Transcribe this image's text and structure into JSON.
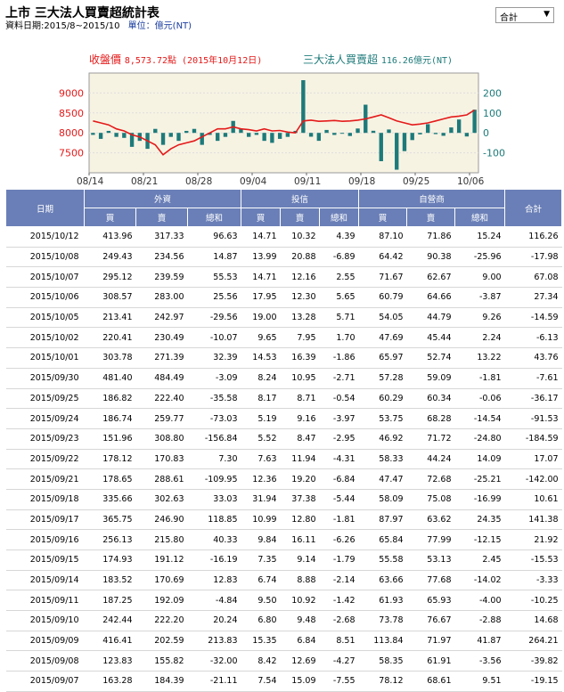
{
  "header": {
    "title": "上市 三大法人買賣超統計表",
    "date_range": "資料日期:2015/8~2015/10",
    "unit": "單位：億元(NT)"
  },
  "selector": {
    "value": "合計"
  },
  "legend": {
    "close_label": "收盤價",
    "close_value": "8,573.72點 (2015年10月12日)",
    "net_label": "三大法人買賣超",
    "net_value": "116.26億元(NT)"
  },
  "colors": {
    "price_line": "#e41a1a",
    "net_bar": "#1d7a7a",
    "header_bg": "#6a7fb7",
    "plot_bg": "#f7f3e3"
  },
  "chart_data": {
    "type": "bar",
    "left_axis": {
      "ticks": [
        "9000",
        "8500",
        "8000",
        "7500"
      ],
      "range": [
        7000,
        9500
      ]
    },
    "right_axis": {
      "ticks": [
        "200",
        "100",
        "0",
        "-100"
      ],
      "range": [
        -200,
        300
      ]
    },
    "x_ticks": [
      "08/14",
      "08/21",
      "08/28",
      "09/04",
      "09/11",
      "09/18",
      "09/25",
      "10/06"
    ],
    "net_values": [
      -10,
      -30,
      10,
      -20,
      -25,
      -70,
      -40,
      -80,
      20,
      -60,
      -20,
      -40,
      10,
      20,
      -60,
      -10,
      -40,
      -20,
      60,
      20,
      -20,
      -10,
      -40,
      -50,
      -30,
      -20,
      10,
      264.21,
      -19.15,
      -39.82,
      14.68,
      -10.25,
      -3.33,
      -15.53,
      21.92,
      141.38,
      10.61,
      -142.0,
      17.07,
      -184.59,
      -91.53,
      -36.17,
      -7.61,
      43.76,
      -6.13,
      -14.59,
      27.34,
      67.08,
      -17.98,
      116.26
    ],
    "close_values": [
      8300,
      8250,
      8200,
      8100,
      8050,
      7950,
      7900,
      7800,
      7700,
      7450,
      7600,
      7700,
      7750,
      7800,
      7900,
      8000,
      8100,
      8100,
      8150,
      8100,
      8080,
      8050,
      8100,
      8050,
      8060,
      8020,
      8000,
      8300,
      8320,
      8290,
      8300,
      8310,
      8290,
      8300,
      8320,
      8350,
      8400,
      8450,
      8380,
      8300,
      8250,
      8200,
      8220,
      8250,
      8300,
      8350,
      8400,
      8420,
      8450,
      8573.72
    ]
  },
  "table": {
    "groups": [
      "日期",
      "外資",
      "投信",
      "自營商",
      "合計"
    ],
    "subheaders": [
      "買",
      "賣",
      "總和",
      "買",
      "賣",
      "總和",
      "買",
      "賣",
      "總和"
    ],
    "rows": [
      [
        "2015/10/12",
        "413.96",
        "317.33",
        "96.63",
        "14.71",
        "10.32",
        "4.39",
        "87.10",
        "71.86",
        "15.24",
        "116.26"
      ],
      [
        "2015/10/08",
        "249.43",
        "234.56",
        "14.87",
        "13.99",
        "20.88",
        "-6.89",
        "64.42",
        "90.38",
        "-25.96",
        "-17.98"
      ],
      [
        "2015/10/07",
        "295.12",
        "239.59",
        "55.53",
        "14.71",
        "12.16",
        "2.55",
        "71.67",
        "62.67",
        "9.00",
        "67.08"
      ],
      [
        "2015/10/06",
        "308.57",
        "283.00",
        "25.56",
        "17.95",
        "12.30",
        "5.65",
        "60.79",
        "64.66",
        "-3.87",
        "27.34"
      ],
      [
        "2015/10/05",
        "213.41",
        "242.97",
        "-29.56",
        "19.00",
        "13.28",
        "5.71",
        "54.05",
        "44.79",
        "9.26",
        "-14.59"
      ],
      [
        "2015/10/02",
        "220.41",
        "230.49",
        "-10.07",
        "9.65",
        "7.95",
        "1.70",
        "47.69",
        "45.44",
        "2.24",
        "-6.13"
      ],
      [
        "2015/10/01",
        "303.78",
        "271.39",
        "32.39",
        "14.53",
        "16.39",
        "-1.86",
        "65.97",
        "52.74",
        "13.22",
        "43.76"
      ],
      [
        "2015/09/30",
        "481.40",
        "484.49",
        "-3.09",
        "8.24",
        "10.95",
        "-2.71",
        "57.28",
        "59.09",
        "-1.81",
        "-7.61"
      ],
      [
        "2015/09/25",
        "186.82",
        "222.40",
        "-35.58",
        "8.17",
        "8.71",
        "-0.54",
        "60.29",
        "60.34",
        "-0.06",
        "-36.17"
      ],
      [
        "2015/09/24",
        "186.74",
        "259.77",
        "-73.03",
        "5.19",
        "9.16",
        "-3.97",
        "53.75",
        "68.28",
        "-14.54",
        "-91.53"
      ],
      [
        "2015/09/23",
        "151.96",
        "308.80",
        "-156.84",
        "5.52",
        "8.47",
        "-2.95",
        "46.92",
        "71.72",
        "-24.80",
        "-184.59"
      ],
      [
        "2015/09/22",
        "178.12",
        "170.83",
        "7.30",
        "7.63",
        "11.94",
        "-4.31",
        "58.33",
        "44.24",
        "14.09",
        "17.07"
      ],
      [
        "2015/09/21",
        "178.65",
        "288.61",
        "-109.95",
        "12.36",
        "19.20",
        "-6.84",
        "47.47",
        "72.68",
        "-25.21",
        "-142.00"
      ],
      [
        "2015/09/18",
        "335.66",
        "302.63",
        "33.03",
        "31.94",
        "37.38",
        "-5.44",
        "58.09",
        "75.08",
        "-16.99",
        "10.61"
      ],
      [
        "2015/09/17",
        "365.75",
        "246.90",
        "118.85",
        "10.99",
        "12.80",
        "-1.81",
        "87.97",
        "63.62",
        "24.35",
        "141.38"
      ],
      [
        "2015/09/16",
        "256.13",
        "215.80",
        "40.33",
        "9.84",
        "16.11",
        "-6.26",
        "65.84",
        "77.99",
        "-12.15",
        "21.92"
      ],
      [
        "2015/09/15",
        "174.93",
        "191.12",
        "-16.19",
        "7.35",
        "9.14",
        "-1.79",
        "55.58",
        "53.13",
        "2.45",
        "-15.53"
      ],
      [
        "2015/09/14",
        "183.52",
        "170.69",
        "12.83",
        "6.74",
        "8.88",
        "-2.14",
        "63.66",
        "77.68",
        "-14.02",
        "-3.33"
      ],
      [
        "2015/09/11",
        "187.25",
        "192.09",
        "-4.84",
        "9.50",
        "10.92",
        "-1.42",
        "61.93",
        "65.93",
        "-4.00",
        "-10.25"
      ],
      [
        "2015/09/10",
        "242.44",
        "222.20",
        "20.24",
        "6.80",
        "9.48",
        "-2.68",
        "73.78",
        "76.67",
        "-2.88",
        "14.68"
      ],
      [
        "2015/09/09",
        "416.41",
        "202.59",
        "213.83",
        "15.35",
        "6.84",
        "8.51",
        "113.84",
        "71.97",
        "41.87",
        "264.21"
      ],
      [
        "2015/09/08",
        "123.83",
        "155.82",
        "-32.00",
        "8.42",
        "12.69",
        "-4.27",
        "58.35",
        "61.91",
        "-3.56",
        "-39.82"
      ],
      [
        "2015/09/07",
        "163.28",
        "184.39",
        "-21.11",
        "7.54",
        "15.09",
        "-7.55",
        "78.12",
        "68.61",
        "9.51",
        "-19.15"
      ]
    ]
  }
}
